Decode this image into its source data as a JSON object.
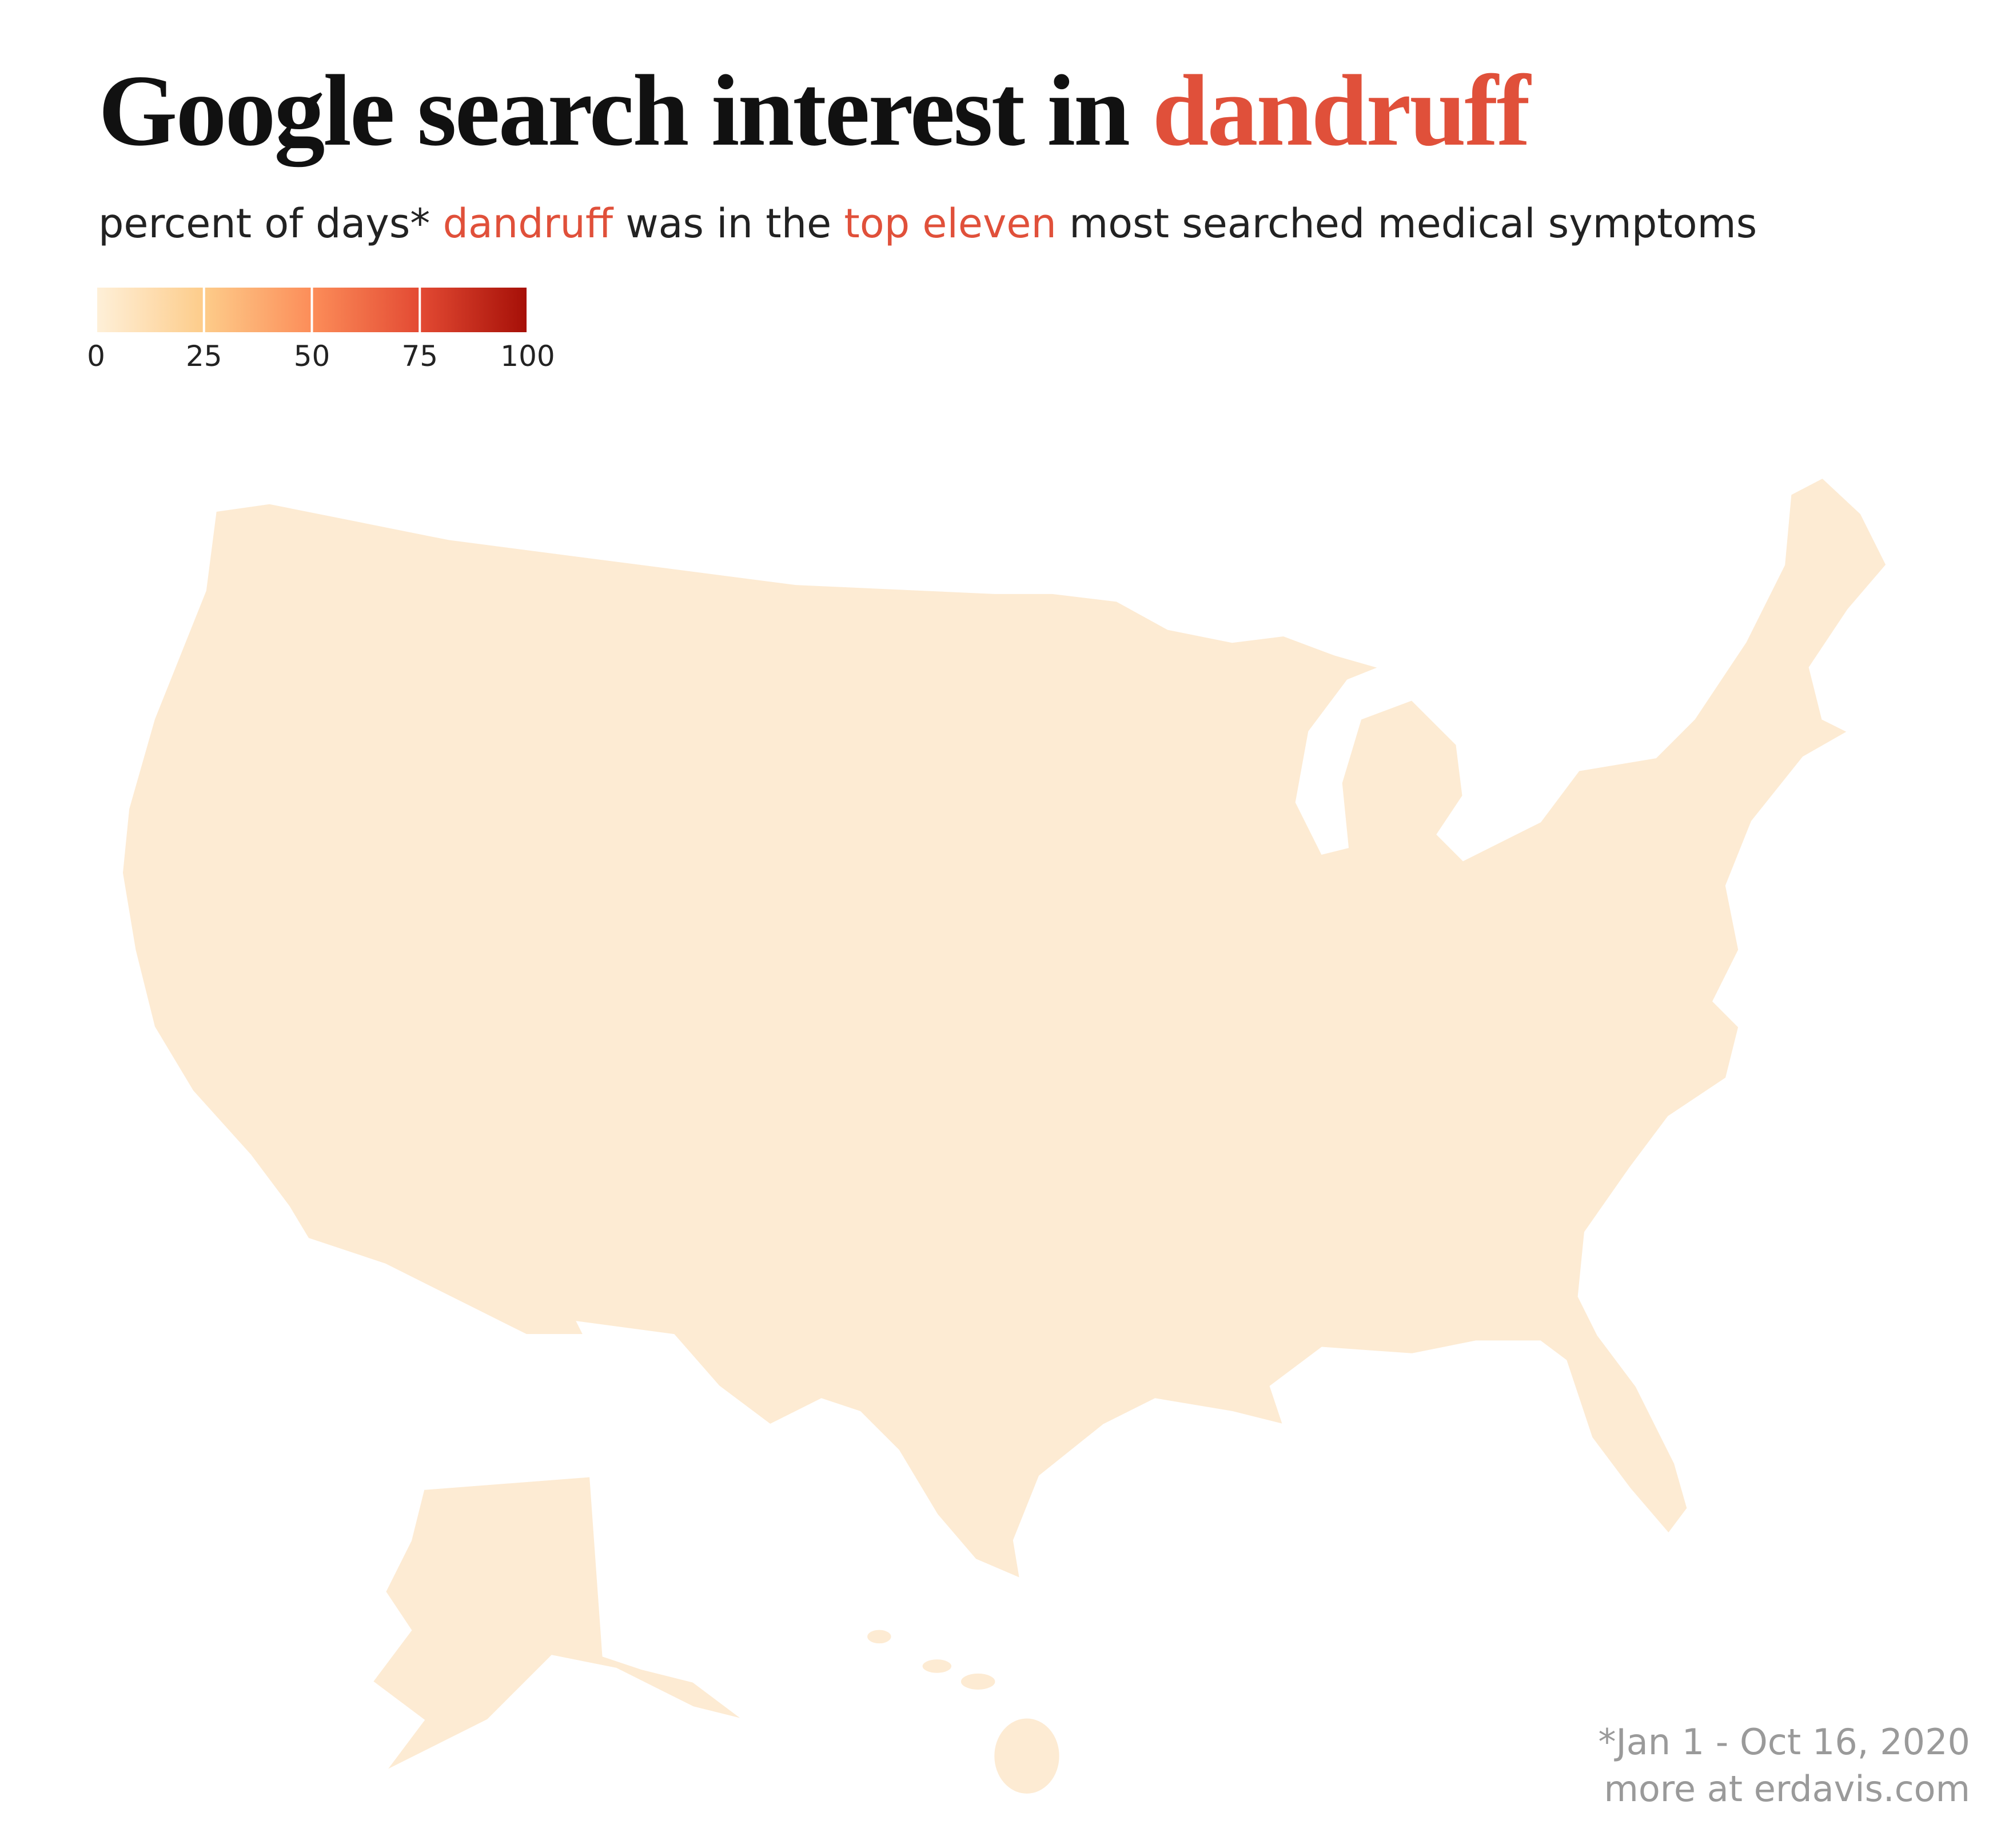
{
  "header": {
    "title": "Google search interest in",
    "title_highlight": "dandruff",
    "highlight_color": "#e0503a",
    "subtitle": [
      "percent of days*",
      "dandruff",
      "was in the",
      "top eleven",
      "most searched medical symptoms"
    ]
  },
  "legend": {
    "range": [
      0,
      100
    ],
    "ticks": [
      0,
      25,
      50,
      75,
      100
    ],
    "colors": [
      "#fef0d9",
      "#fdcc8a",
      "#fc8d59",
      "#e34a33",
      "#a50f07"
    ]
  },
  "footer": {
    "note": "*Jan 1 - Oct 16, 2020",
    "source": "more at erdavis.com"
  }
}
